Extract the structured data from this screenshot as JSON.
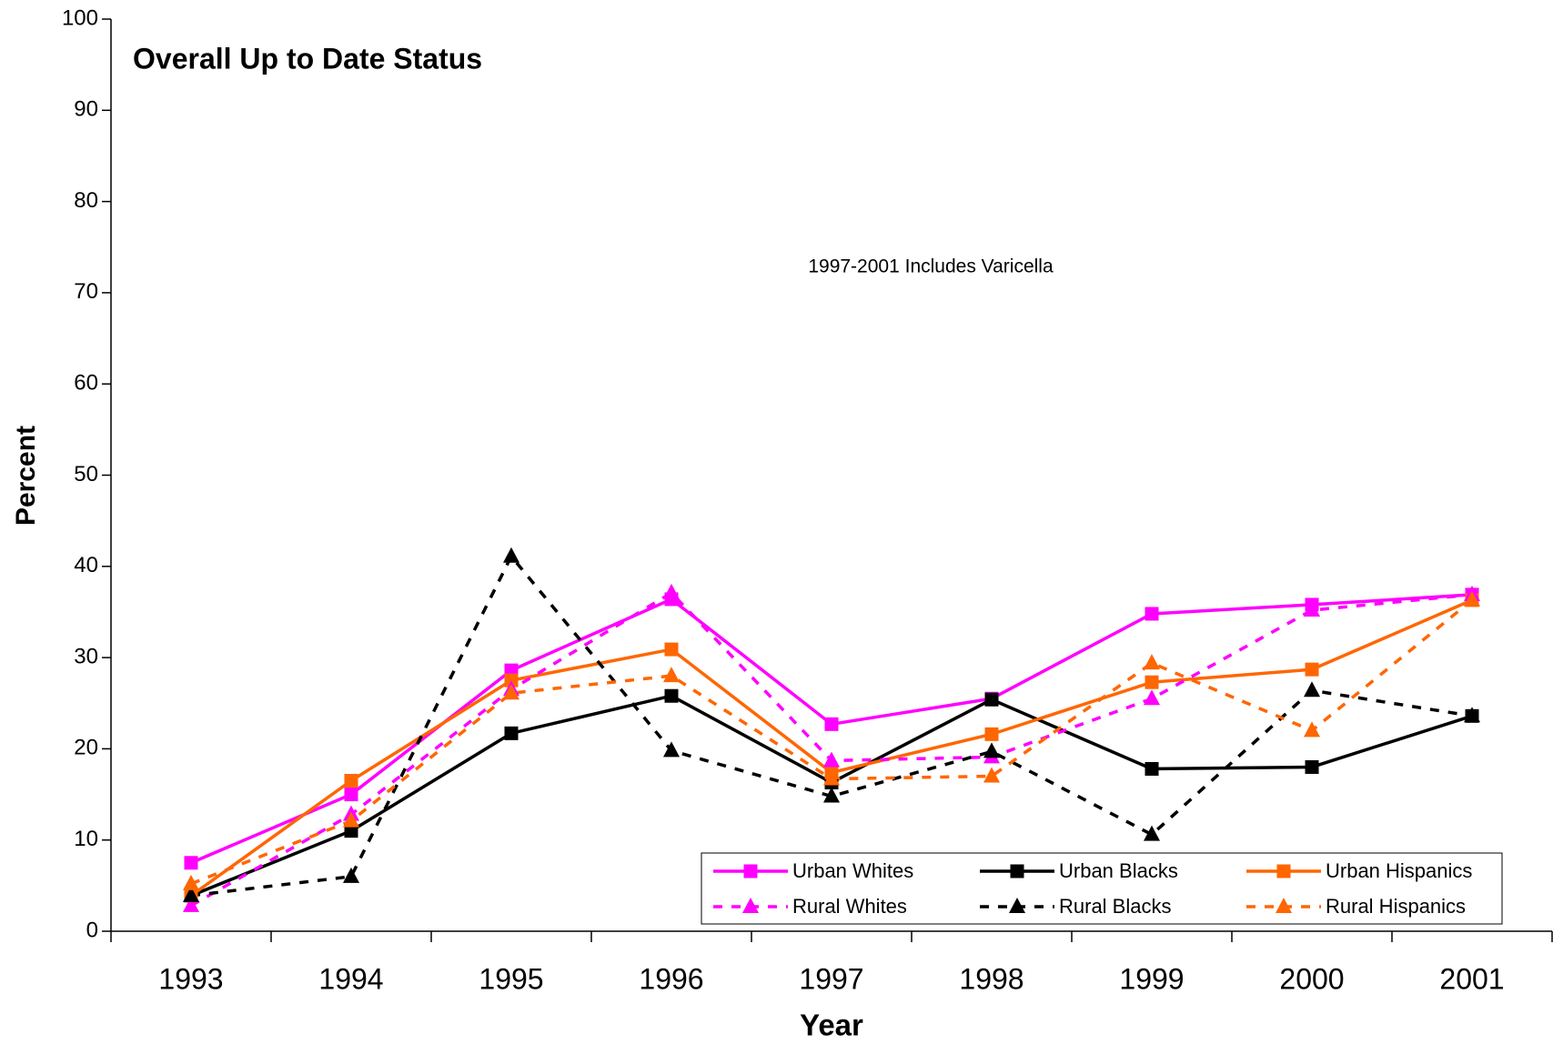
{
  "chart_data": {
    "type": "line",
    "title": "Overall Up to Date Status",
    "annotation": "1997-2001 Includes Varicella",
    "x_label": "Year",
    "y_label": "Percent",
    "categories": [
      "1993",
      "1994",
      "1995",
      "1996",
      "1997",
      "1998",
      "1999",
      "2000",
      "2001"
    ],
    "ylim": [
      0,
      100
    ],
    "yticks": [
      0,
      10,
      20,
      30,
      40,
      50,
      60,
      70,
      80,
      90,
      100
    ],
    "grid": false,
    "legend": "lower right",
    "series": [
      {
        "name": "Urban Whites",
        "color": "#ff00ff",
        "dashed": false,
        "marker": "square",
        "values": [
          7.5,
          15,
          28.6,
          36.4,
          22.7,
          25.5,
          34.8,
          35.8,
          36.9
        ]
      },
      {
        "name": "Urban Blacks",
        "color": "#000000",
        "dashed": false,
        "marker": "square",
        "values": [
          3.9,
          11,
          21.7,
          25.8,
          16.3,
          25.4,
          17.8,
          18,
          23.6
        ]
      },
      {
        "name": "Urban Hispanics",
        "color": "#ff6600",
        "dashed": false,
        "marker": "square",
        "values": [
          3.9,
          16.5,
          27.5,
          30.9,
          17.4,
          21.6,
          27.3,
          28.7,
          36.3
        ]
      },
      {
        "name": "Rural Whites",
        "color": "#ff00ff",
        "dashed": true,
        "marker": "triangle",
        "values": [
          2.8,
          12.8,
          26.5,
          37.1,
          18.7,
          19.1,
          25.5,
          35.2,
          36.9
        ]
      },
      {
        "name": "Rural Blacks",
        "color": "#000000",
        "dashed": true,
        "marker": "triangle",
        "values": [
          3.9,
          6,
          41.1,
          19.8,
          14.8,
          19.7,
          10.6,
          26.4,
          23.6
        ]
      },
      {
        "name": "Rural Hispanics",
        "color": "#ff6600",
        "dashed": true,
        "marker": "triangle",
        "values": [
          5.2,
          12.1,
          26.1,
          28,
          16.7,
          17,
          29.4,
          22,
          36.3
        ]
      }
    ]
  }
}
